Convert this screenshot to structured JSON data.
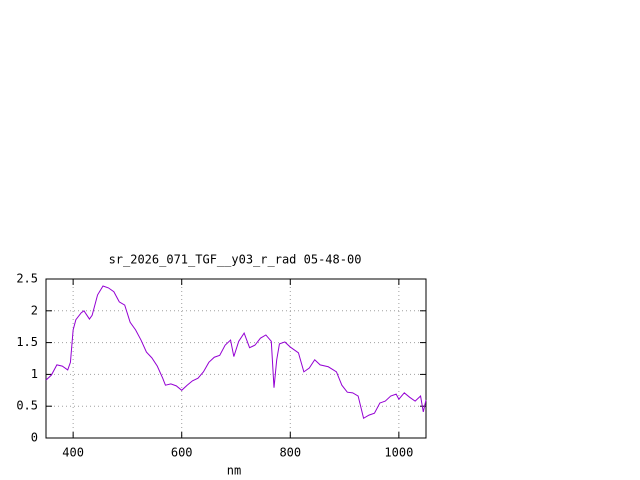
{
  "chart_data": {
    "type": "line",
    "title": "sr_2026_071_TGF__y03_r_rad 05-48-00",
    "x_label": "nm",
    "x": [
      350,
      360,
      370,
      380,
      390,
      395,
      400,
      405,
      415,
      420,
      430,
      435,
      445,
      455,
      465,
      475,
      485,
      495,
      505,
      515,
      525,
      535,
      545,
      555,
      565,
      570,
      580,
      590,
      600,
      610,
      620,
      630,
      640,
      650,
      660,
      670,
      680,
      690,
      696,
      705,
      715,
      725,
      735,
      745,
      755,
      765,
      770,
      775,
      780,
      790,
      800,
      815,
      825,
      835,
      845,
      855,
      870,
      885,
      895,
      905,
      915,
      925,
      935,
      945,
      955,
      965,
      975,
      985,
      995,
      1000,
      1010,
      1020,
      1030,
      1040,
      1045,
      1050
    ],
    "series": [
      {
        "name": "sr_2026_071_TGF__y03_r_rad",
        "color": "#9400d3",
        "values": [
          0.91,
          0.99,
          1.15,
          1.13,
          1.07,
          1.19,
          1.7,
          1.86,
          1.97,
          2.0,
          1.87,
          1.93,
          2.25,
          2.39,
          2.36,
          2.3,
          2.14,
          2.09,
          1.82,
          1.7,
          1.54,
          1.35,
          1.26,
          1.13,
          0.94,
          0.83,
          0.85,
          0.82,
          0.75,
          0.83,
          0.9,
          0.94,
          1.04,
          1.19,
          1.27,
          1.3,
          1.46,
          1.54,
          1.28,
          1.52,
          1.65,
          1.42,
          1.46,
          1.57,
          1.62,
          1.52,
          0.79,
          1.23,
          1.48,
          1.51,
          1.43,
          1.34,
          1.04,
          1.1,
          1.23,
          1.15,
          1.12,
          1.04,
          0.83,
          0.72,
          0.71,
          0.66,
          0.31,
          0.36,
          0.39,
          0.55,
          0.58,
          0.66,
          0.69,
          0.61,
          0.71,
          0.64,
          0.58,
          0.66,
          0.41,
          0.6
        ]
      }
    ],
    "xlim": [
      350,
      1050
    ],
    "xticks": [
      400,
      600,
      800,
      1000
    ],
    "ylim": [
      0,
      2.5
    ],
    "yticks": [
      0,
      0.5,
      1,
      1.5,
      2,
      2.5
    ],
    "grid": true
  }
}
